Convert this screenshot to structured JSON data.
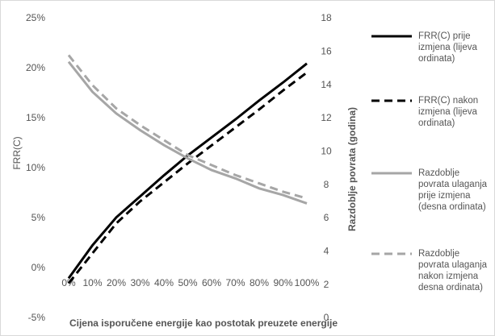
{
  "chart_data": {
    "type": "line",
    "x_label": "Cijena isporučene energije kao postotak preuzete energije",
    "y_label": "FRR(C)",
    "y2_label": "Razdoblje povrata (godina)",
    "categories": [
      "0%",
      "10%",
      "20%",
      "30%",
      "40%",
      "50%",
      "60%",
      "70%",
      "80%",
      "90%",
      "100%"
    ],
    "ylim": [
      -5,
      25
    ],
    "yticks": [
      {
        "value": -5,
        "label": "-5%"
      },
      {
        "value": 0,
        "label": "0%"
      },
      {
        "value": 5,
        "label": "5%"
      },
      {
        "value": 10,
        "label": "10%"
      },
      {
        "value": 15,
        "label": "15%"
      },
      {
        "value": 20,
        "label": "20%"
      },
      {
        "value": 25,
        "label": "25%"
      }
    ],
    "y2lim": [
      0,
      18
    ],
    "y2ticks": [
      0,
      2,
      4,
      6,
      8,
      10,
      12,
      14,
      16,
      18
    ],
    "series": [
      {
        "name": "FRR(C) prije izmjena (lijeva ordinata)",
        "color": "#000000",
        "dash": false,
        "values": [
          -1,
          2.3,
          5.1,
          7.2,
          9.3,
          11.3,
          13.1,
          14.9,
          16.8,
          18.6,
          20.5
        ]
      },
      {
        "name": "FRR(C) nakon izmjena (lijeva ordinata)",
        "color": "#000000",
        "dash": true,
        "values": [
          -1.5,
          1.5,
          4.5,
          6.7,
          8.6,
          10.5,
          12.3,
          14.1,
          15.9,
          17.8,
          19.6
        ]
      },
      {
        "name": "Razdoblje povrata ulaganja prije izmjena (desna ordinata)",
        "color": "#a6a6a6",
        "dash": false,
        "axis": "y2",
        "values": [
          15.4,
          13.6,
          12.3,
          11.3,
          10.4,
          9.6,
          8.9,
          8.4,
          7.8,
          7.4,
          6.9
        ]
      },
      {
        "name": "Razdoblje povrata ulaganja nakon izmjena desna ordinata)",
        "color": "#a6a6a6",
        "dash": true,
        "axis": "y2",
        "values": [
          15.8,
          14.0,
          12.6,
          11.6,
          10.7,
          9.8,
          9.2,
          8.6,
          8.1,
          7.6,
          7.2
        ]
      }
    ]
  }
}
